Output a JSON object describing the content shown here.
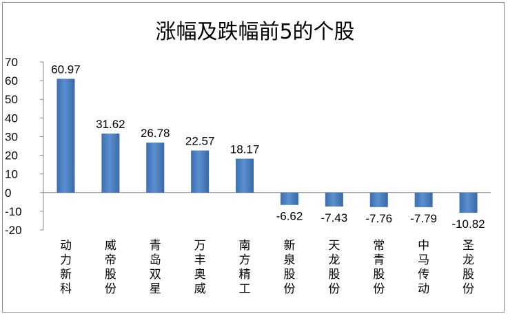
{
  "chart_data": {
    "type": "bar",
    "title": "涨幅及跌幅前5的个股",
    "categories": [
      "动力新科",
      "威帝股份",
      "青岛双星",
      "万丰奥威",
      "南方精工",
      "新泉股份",
      "天龙股份",
      "常青股份",
      "中马传动",
      "圣龙股份"
    ],
    "values": [
      60.97,
      31.62,
      26.78,
      22.57,
      18.17,
      -6.62,
      -7.43,
      -7.76,
      -7.79,
      -10.82
    ],
    "data_labels": [
      "60.97",
      "31.62",
      "26.78",
      "22.57",
      "18.17",
      "-6.62",
      "-7.43",
      "-7.76",
      "-7.79",
      "-10.82"
    ],
    "y_ticks": [
      "70",
      "60",
      "50",
      "40",
      "30",
      "20",
      "10",
      "0",
      "-10",
      "-20"
    ],
    "ylim": [
      -20,
      70
    ],
    "grid": false,
    "legend": "none",
    "bar_color": "#4a7ebb",
    "bar_gradient": [
      "#3c6fb0",
      "#5a8fd0",
      "#3a68a6"
    ],
    "axis_color": "#888888"
  }
}
